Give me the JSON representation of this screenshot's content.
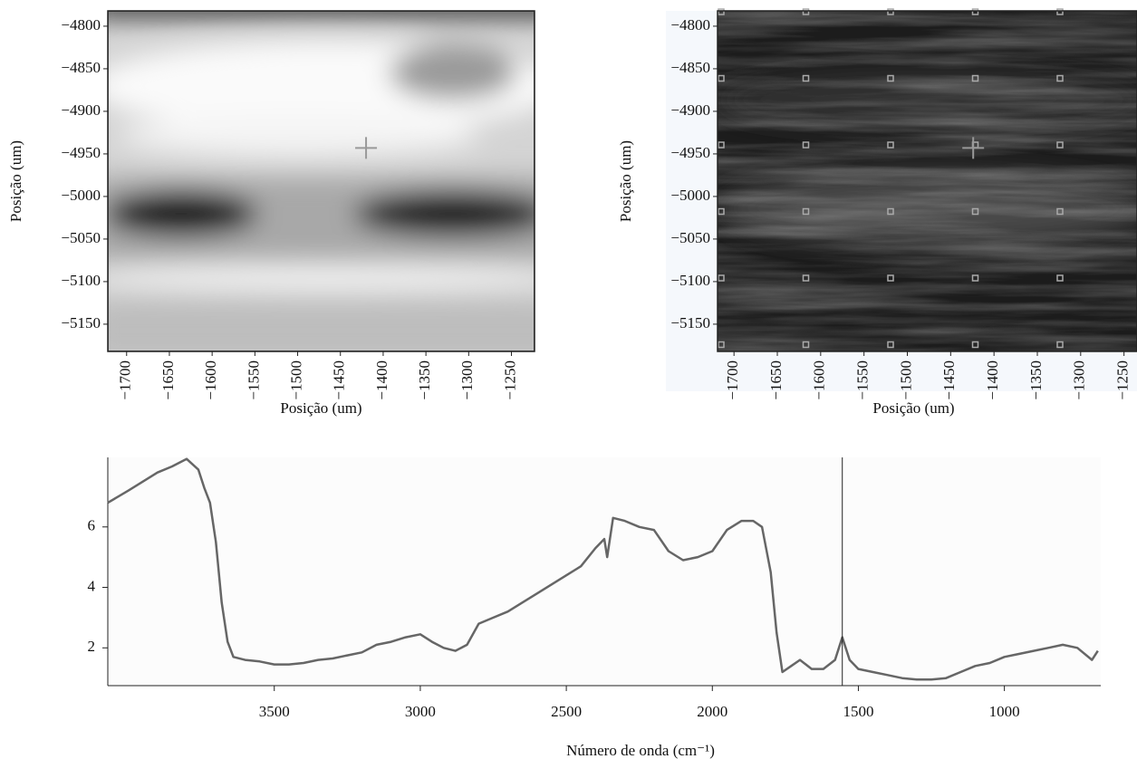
{
  "chart_data": [
    {
      "type": "heatmap",
      "xlabel": "Posição (um)",
      "ylabel": "Posição (um)",
      "xlim": [
        -1722,
        -1223
      ],
      "ylim": [
        -5182,
        -4782
      ],
      "xticks": [
        {
          "value": -1700,
          "label": "−1700"
        },
        {
          "value": -1650,
          "label": "−1650"
        },
        {
          "value": -1600,
          "label": "−1600"
        },
        {
          "value": -1550,
          "label": "−1550"
        },
        {
          "value": -1500,
          "label": "−1500"
        },
        {
          "value": -1450,
          "label": "−1450"
        },
        {
          "value": -1400,
          "label": "−1400"
        },
        {
          "value": -1350,
          "label": "−1350"
        },
        {
          "value": -1300,
          "label": "−1300"
        },
        {
          "value": -1250,
          "label": "−1250"
        }
      ],
      "yticks": [
        {
          "value": -4800,
          "label": "−4800"
        },
        {
          "value": -4850,
          "label": "−4850"
        },
        {
          "value": -4900,
          "label": "−4900"
        },
        {
          "value": -4950,
          "label": "−4950"
        },
        {
          "value": -5000,
          "label": "−5000"
        },
        {
          "value": -5050,
          "label": "−5050"
        },
        {
          "value": -5100,
          "label": "−5100"
        },
        {
          "value": -5150,
          "label": "−5150"
        }
      ],
      "cursor": [
        -1420,
        -4943
      ]
    },
    {
      "type": "heatmap",
      "xlabel": "Posição (um)",
      "ylabel": "Posição (um)",
      "xlim": [
        -1719,
        -1235
      ],
      "ylim": [
        -5182,
        -4782
      ],
      "xticks": [
        {
          "value": -1700,
          "label": "−1700"
        },
        {
          "value": -1650,
          "label": "−1650"
        },
        {
          "value": -1600,
          "label": "−1600"
        },
        {
          "value": -1550,
          "label": "−1550"
        },
        {
          "value": -1500,
          "label": "−1500"
        },
        {
          "value": -1450,
          "label": "−1450"
        },
        {
          "value": -1400,
          "label": "−1400"
        },
        {
          "value": -1350,
          "label": "−1350"
        },
        {
          "value": -1300,
          "label": "−1300"
        },
        {
          "value": -1250,
          "label": "−1250"
        }
      ],
      "yticks": [
        {
          "value": -4800,
          "label": "−4800"
        },
        {
          "value": -4850,
          "label": "−4850"
        },
        {
          "value": -4900,
          "label": "−4900"
        },
        {
          "value": -4950,
          "label": "−4950"
        },
        {
          "value": -5000,
          "label": "−5000"
        },
        {
          "value": -5050,
          "label": "−5050"
        },
        {
          "value": -5100,
          "label": "−5100"
        },
        {
          "value": -5150,
          "label": "−5150"
        }
      ],
      "cursor": [
        -1424,
        -4943
      ]
    },
    {
      "type": "line",
      "xlabel": "Número de onda (cm⁻¹)",
      "color": "#666666",
      "xlim": [
        4070,
        670
      ],
      "ylim": [
        0.75,
        8.3
      ],
      "xticks": [
        3500,
        3000,
        2500,
        2000,
        1500,
        1000
      ],
      "yticks": [
        2,
        4,
        6
      ],
      "cursor_x": 1555,
      "x": [
        4070,
        4000,
        3950,
        3900,
        3850,
        3800,
        3760,
        3740,
        3720,
        3700,
        3680,
        3660,
        3640,
        3600,
        3550,
        3500,
        3450,
        3400,
        3350,
        3300,
        3250,
        3200,
        3150,
        3100,
        3050,
        3000,
        2960,
        2920,
        2880,
        2840,
        2800,
        2750,
        2700,
        2650,
        2600,
        2550,
        2500,
        2450,
        2400,
        2370,
        2360,
        2340,
        2300,
        2250,
        2200,
        2150,
        2100,
        2050,
        2000,
        1950,
        1900,
        1860,
        1830,
        1800,
        1780,
        1760,
        1730,
        1700,
        1660,
        1620,
        1580,
        1555,
        1530,
        1500,
        1450,
        1400,
        1350,
        1300,
        1250,
        1200,
        1150,
        1100,
        1050,
        1000,
        950,
        900,
        850,
        800,
        750,
        700,
        680
      ],
      "values": [
        6.8,
        7.2,
        7.5,
        7.8,
        8.0,
        8.25,
        7.9,
        7.3,
        6.8,
        5.5,
        3.5,
        2.2,
        1.7,
        1.6,
        1.55,
        1.45,
        1.45,
        1.5,
        1.6,
        1.65,
        1.75,
        1.85,
        2.1,
        2.2,
        2.35,
        2.45,
        2.2,
        2.0,
        1.9,
        2.1,
        2.8,
        3.0,
        3.2,
        3.5,
        3.8,
        4.1,
        4.4,
        4.7,
        5.3,
        5.6,
        5.0,
        6.3,
        6.2,
        6.0,
        5.9,
        5.2,
        4.9,
        5.0,
        5.2,
        5.9,
        6.2,
        6.2,
        6.0,
        4.5,
        2.5,
        1.2,
        1.4,
        1.6,
        1.3,
        1.3,
        1.6,
        2.35,
        1.6,
        1.3,
        1.2,
        1.1,
        1.0,
        0.95,
        0.95,
        1.0,
        1.2,
        1.4,
        1.5,
        1.7,
        1.8,
        1.9,
        2.0,
        2.1,
        2.0,
        1.6,
        1.9
      ]
    }
  ]
}
